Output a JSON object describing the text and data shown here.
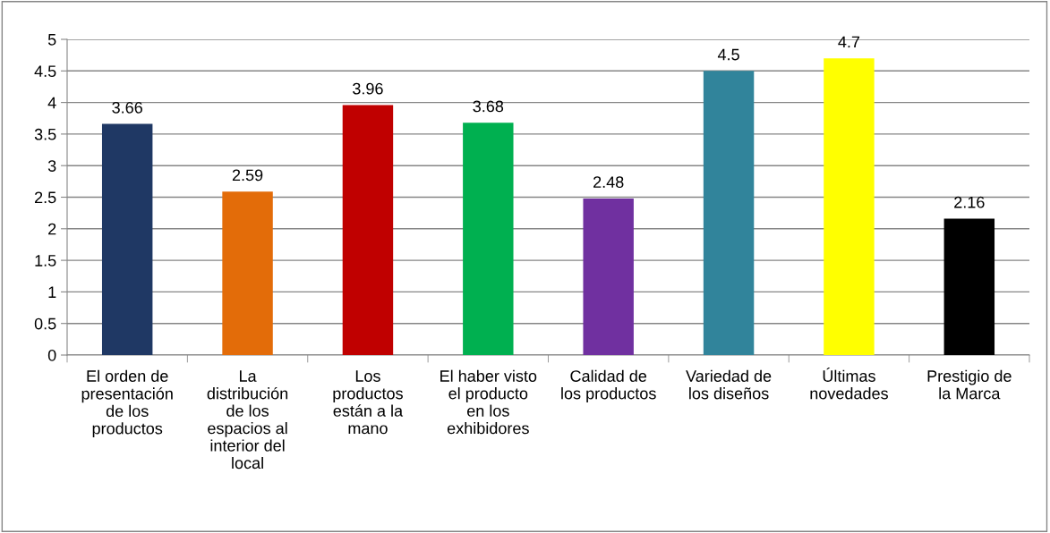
{
  "chart_data": {
    "type": "bar",
    "categories": [
      "El orden de\npresentación\nde los\nproductos",
      "La\ndistribución\nde los\nespacios al\ninterior del\nlocal",
      "Los\nproductos\nestán a la\nmano",
      "El haber visto\nel producto\nen los\nexhibidores",
      "Calidad de\nlos productos",
      "Variedad de\nlos diseños",
      "Últimas\nnovedades",
      "Prestigio de\nla Marca"
    ],
    "values": [
      3.66,
      2.59,
      3.96,
      3.68,
      2.48,
      4.5,
      4.7,
      2.16
    ],
    "colors": [
      "#1f3864",
      "#e36c09",
      "#c00000",
      "#00b050",
      "#7030a0",
      "#31849b",
      "#ffff00",
      "#000000"
    ],
    "data_labels": true,
    "ylim": [
      0,
      5
    ],
    "yticks": [
      0,
      0.5,
      1,
      1.5,
      2,
      2.5,
      3,
      3.5,
      4,
      4.5,
      5
    ],
    "grid": "y",
    "legend": false
  }
}
